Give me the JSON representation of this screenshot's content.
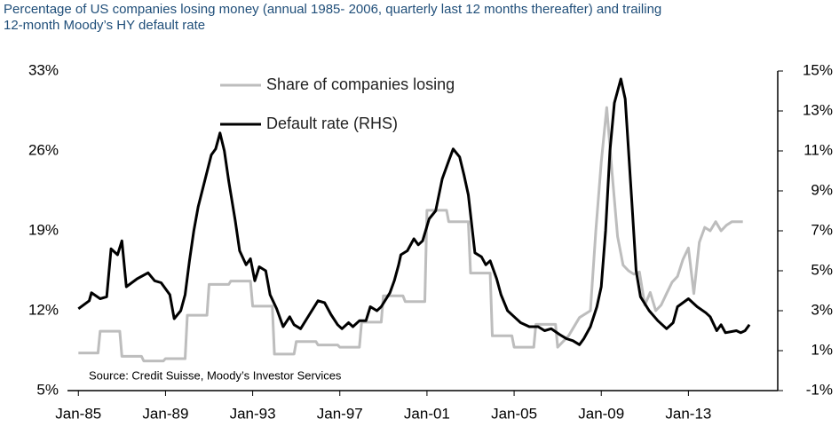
{
  "chart_data": {
    "type": "line",
    "title": [
      "Percentage of US companies losing money (annual 1985- 2006, quarterly last 12 months thereafter) and trailing",
      "12-month Moody’s HY default rate"
    ],
    "annotation": "Source: Credit Suisse, Moody’s Investor Services",
    "xlim": [
      1984.5,
      2017.1
    ],
    "xticks": [
      {
        "value": 1985,
        "label": "Jan-85"
      },
      {
        "value": 1989,
        "label": "Jan-89"
      },
      {
        "value": 1993,
        "label": "Jan-93"
      },
      {
        "value": 1997,
        "label": "Jan-97"
      },
      {
        "value": 2001,
        "label": "Jan-01"
      },
      {
        "value": 2005,
        "label": "Jan-05"
      },
      {
        "value": 2009,
        "label": "Jan-09"
      },
      {
        "value": 2013,
        "label": "Jan-13"
      }
    ],
    "ylim": [
      5,
      33
    ],
    "yticks": [
      {
        "value": 5,
        "label": "5%"
      },
      {
        "value": 12,
        "label": "12%"
      },
      {
        "value": 19,
        "label": "19%"
      },
      {
        "value": 26,
        "label": "26%"
      },
      {
        "value": 33,
        "label": "33%"
      }
    ],
    "y2lim": [
      -1,
      15
    ],
    "y2ticks": [
      {
        "value": -1,
        "label": "-1%"
      },
      {
        "value": 1,
        "label": "1%"
      },
      {
        "value": 3,
        "label": "3%"
      },
      {
        "value": 5,
        "label": "5%"
      },
      {
        "value": 7,
        "label": "7%"
      },
      {
        "value": 9,
        "label": "9%"
      },
      {
        "value": 11,
        "label": "11%"
      },
      {
        "value": 13,
        "label": "13%"
      },
      {
        "value": 15,
        "label": "15%"
      }
    ],
    "series": [
      {
        "name": "Share of companies losing",
        "color": "#bdbdbd",
        "axis": "y",
        "x": [
          1985,
          1985.9,
          1986,
          1986.9,
          1987,
          1987.9,
          1988,
          1988.9,
          1989,
          1989.9,
          1990,
          1990.9,
          1991,
          1991.9,
          1992,
          1992.9,
          1993,
          1993.9,
          1994,
          1994.9,
          1995,
          1995.9,
          1996,
          1996.9,
          1997,
          1997.9,
          1998,
          1998.9,
          1999,
          1999.9,
          2000,
          2000.9,
          2001,
          2001.9,
          2002,
          2002.9,
          2003,
          2003.9,
          2004,
          2004.9,
          2005,
          2005.9,
          2006,
          2006.9,
          2007,
          2007.5,
          2008,
          2008.5,
          2008.75,
          2009,
          2009.25,
          2009.5,
          2009.75,
          2010,
          2010.25,
          2010.5,
          2010.75,
          2011,
          2011.25,
          2011.5,
          2011.75,
          2012,
          2012.25,
          2012.5,
          2012.75,
          2013,
          2013.25,
          2013.5,
          2013.75,
          2014,
          2014.25,
          2014.5,
          2014.75,
          2015,
          2015.5
        ],
        "values": [
          8.3,
          8.3,
          10.2,
          10.2,
          8,
          8,
          7.6,
          7.6,
          7.8,
          7.8,
          11.6,
          11.6,
          14.3,
          14.3,
          14.6,
          14.6,
          12.4,
          12.4,
          8.2,
          8.2,
          9.3,
          9.3,
          9,
          9,
          8.8,
          8.8,
          11,
          11,
          13.3,
          13.3,
          12.8,
          12.8,
          20.8,
          20.8,
          19.8,
          19.8,
          15.3,
          15.3,
          9.8,
          9.8,
          8.8,
          8.8,
          10.8,
          10.8,
          8.8,
          9.8,
          11.4,
          12,
          19,
          25,
          29.8,
          24,
          18.5,
          16,
          15.5,
          15.2,
          15.4,
          12.5,
          13.6,
          12,
          12.5,
          13.5,
          14.5,
          15,
          16.5,
          17.5,
          13.5,
          18,
          19.3,
          19,
          19.8,
          19,
          19.5,
          19.8,
          19.8
        ]
      },
      {
        "name": "Default rate (RHS)",
        "color": "#000000",
        "axis": "y2",
        "x": [
          1985,
          1985.5,
          1985.6,
          1986,
          1986.3,
          1986.5,
          1986.8,
          1987,
          1987.2,
          1987.7,
          1988.2,
          1988.5,
          1988.8,
          1989.2,
          1989.4,
          1989.7,
          1989.9,
          1990.1,
          1990.3,
          1990.5,
          1990.8,
          1991.1,
          1991.3,
          1991.5,
          1991.7,
          1991.9,
          1992.2,
          1992.4,
          1992.7,
          1992.9,
          1993.1,
          1993.3,
          1993.6,
          1993.8,
          1994.1,
          1994.4,
          1994.7,
          1994.9,
          1995.2,
          1995.6,
          1996,
          1996.3,
          1996.6,
          1996.9,
          1997.1,
          1997.4,
          1997.6,
          1997.9,
          1998.2,
          1998.4,
          1998.7,
          1998.9,
          1999.3,
          1999.5,
          1999.7,
          1999.8,
          2000.1,
          2000.4,
          2000.6,
          2000.8,
          2001.1,
          2001.4,
          2001.7,
          2002,
          2002.2,
          2002.5,
          2002.7,
          2002.9,
          2003.2,
          2003.5,
          2003.7,
          2003.9,
          2004.2,
          2004.4,
          2004.7,
          2005,
          2005.3,
          2005.7,
          2006.1,
          2006.4,
          2006.7,
          2007.1,
          2007.4,
          2007.7,
          2008,
          2008.2,
          2008.5,
          2008.8,
          2009,
          2009.2,
          2009.4,
          2009.6,
          2009.9,
          2010.1,
          2010.4,
          2010.6,
          2010.8,
          2011.2,
          2011.6,
          2012,
          2012.3,
          2012.5,
          2013,
          2013.4,
          2013.8,
          2014,
          2014.3,
          2014.5,
          2014.7,
          2015.2,
          2015.4,
          2015.6,
          2015.8
        ],
        "values": [
          3.1,
          3.5,
          3.9,
          3.6,
          3.7,
          6.1,
          5.8,
          6.5,
          4.2,
          4.6,
          4.9,
          4.5,
          4.4,
          3.8,
          2.6,
          3,
          3.8,
          5.5,
          7,
          8.2,
          9.5,
          10.8,
          11.1,
          11.9,
          11,
          9.5,
          7.5,
          6,
          5.3,
          5.6,
          4.5,
          5.2,
          5,
          3.8,
          3.1,
          2.2,
          2.7,
          2.3,
          2.1,
          2.8,
          3.5,
          3.4,
          2.8,
          2.3,
          2.1,
          2.4,
          2.2,
          2.5,
          2.5,
          3.2,
          3,
          3.2,
          3.9,
          4.5,
          5.3,
          5.8,
          6,
          6.6,
          6.3,
          6.5,
          7.6,
          8,
          9.6,
          10.5,
          11.1,
          10.7,
          9.8,
          8.8,
          5.9,
          5.7,
          5.3,
          5.5,
          4.6,
          3.8,
          3,
          2.7,
          2.4,
          2.2,
          2.2,
          2,
          2.1,
          1.8,
          1.6,
          1.5,
          1.3,
          1.6,
          2.2,
          3.2,
          4.2,
          7,
          11,
          13.4,
          14.6,
          13.6,
          8.5,
          5,
          3.7,
          3,
          2.5,
          2.1,
          2.4,
          3.2,
          3.6,
          3.2,
          2.9,
          2.7,
          2,
          2.3,
          1.9,
          2,
          1.9,
          2,
          2.3
        ]
      }
    ]
  }
}
